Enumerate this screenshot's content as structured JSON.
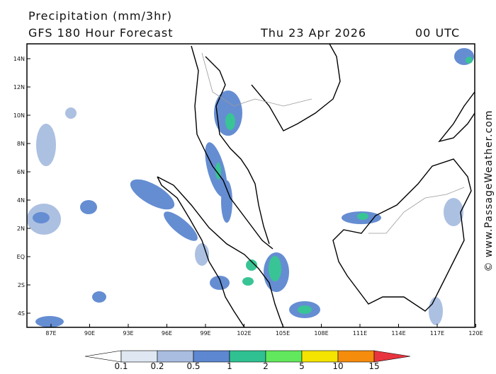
{
  "header": {
    "title": "Precipitation (mm/3hr)",
    "model": "GFS 180 Hour Forecast",
    "date": "Thu 23 Apr 2026",
    "time": "00 UTC"
  },
  "map": {
    "lat_labels": [
      "14N",
      "12N",
      "10N",
      "8N",
      "6N",
      "4N",
      "2N",
      "EQ",
      "2S",
      "4S"
    ],
    "lon_labels": [
      "87E",
      "90E",
      "93E",
      "96E",
      "99E",
      "102E",
      "105E",
      "108E",
      "111E",
      "114E",
      "117E",
      "120E"
    ]
  },
  "legend": {
    "labels": [
      "0.1",
      "0.2",
      "0.5",
      "1",
      "2",
      "5",
      "10",
      "15"
    ],
    "colors": [
      "#ffffff",
      "#dfe7f3",
      "#a8bde0",
      "#5d87d0",
      "#2fc191",
      "#62e85c",
      "#f4e400",
      "#f68c0c",
      "#e8343e"
    ]
  },
  "watermark": "© www.PassageWeather.com"
}
